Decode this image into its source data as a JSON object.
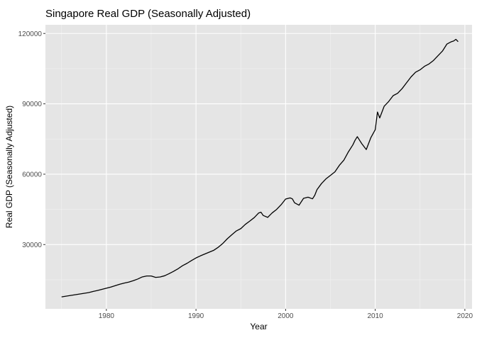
{
  "chart_data": {
    "type": "line",
    "title": "Singapore Real GDP (Seasonally Adjusted)",
    "xlabel": "Year",
    "ylabel": "Real GDP (Seasonally Adjusted)",
    "xlim": [
      1973.2,
      2020.8
    ],
    "ylim": [
      2600,
      123700
    ],
    "x_ticks": [
      1980,
      1990,
      2000,
      2010,
      2020
    ],
    "y_ticks": [
      30000,
      60000,
      90000,
      120000
    ],
    "grid": true,
    "legend": "none",
    "colors": {
      "panel": "#e5e5e5",
      "grid_major": "#ffffff",
      "grid_minor": "#f2f2f2",
      "line": "#000000"
    },
    "series": [
      {
        "x": [
          1975.0,
          1975.5,
          1976.0,
          1976.5,
          1977.0,
          1977.5,
          1978.0,
          1978.5,
          1979.0,
          1979.5,
          1980.0,
          1980.5,
          1981.0,
          1981.5,
          1982.0,
          1982.5,
          1983.0,
          1983.5,
          1984.0,
          1984.5,
          1985.0,
          1985.5,
          1986.0,
          1986.5,
          1987.0,
          1987.5,
          1988.0,
          1988.5,
          1989.0,
          1989.5,
          1990.0,
          1990.5,
          1991.0,
          1991.5,
          1992.0,
          1992.5,
          1993.0,
          1993.5,
          1994.0,
          1994.5,
          1995.0,
          1995.5,
          1996.0,
          1996.5,
          1997.0,
          1997.25,
          1997.5,
          1998.0,
          1998.5,
          1999.0,
          1999.5,
          2000.0,
          2000.5,
          2000.75,
          2001.0,
          2001.5,
          2002.0,
          2002.5,
          2003.0,
          2003.25,
          2003.5,
          2004.0,
          2004.5,
          2005.0,
          2005.5,
          2006.0,
          2006.5,
          2007.0,
          2007.5,
          2007.75,
          2008.0,
          2008.5,
          2009.0,
          2009.5,
          2010.0,
          2010.25,
          2010.5,
          2011.0,
          2011.5,
          2012.0,
          2012.5,
          2013.0,
          2013.5,
          2014.0,
          2014.5,
          2015.0,
          2015.5,
          2016.0,
          2016.5,
          2017.0,
          2017.5,
          2018.0,
          2018.5,
          2018.75,
          2019.0,
          2019.25
        ],
        "y": [
          7700,
          8000,
          8300,
          8600,
          8900,
          9200,
          9500,
          10000,
          10400,
          10900,
          11400,
          11900,
          12500,
          13100,
          13600,
          14000,
          14600,
          15300,
          16200,
          16600,
          16600,
          16000,
          16200,
          16700,
          17600,
          18600,
          19700,
          21000,
          22000,
          23200,
          24300,
          25200,
          26000,
          26800,
          27600,
          28900,
          30500,
          32500,
          34200,
          35800,
          36800,
          38600,
          40000,
          41500,
          43500,
          43800,
          42400,
          41600,
          43500,
          45000,
          47000,
          49400,
          49900,
          49500,
          47800,
          46800,
          49700,
          50200,
          49500,
          51000,
          53400,
          56000,
          58000,
          59500,
          61000,
          63800,
          66000,
          69500,
          72500,
          74500,
          76000,
          73000,
          70500,
          75500,
          79000,
          86500,
          84000,
          89000,
          91000,
          93500,
          94500,
          96500,
          99000,
          101500,
          103500,
          104500,
          106000,
          107000,
          108500,
          110500,
          112500,
          115500,
          116500,
          116800,
          117500,
          116500
        ]
      }
    ]
  }
}
